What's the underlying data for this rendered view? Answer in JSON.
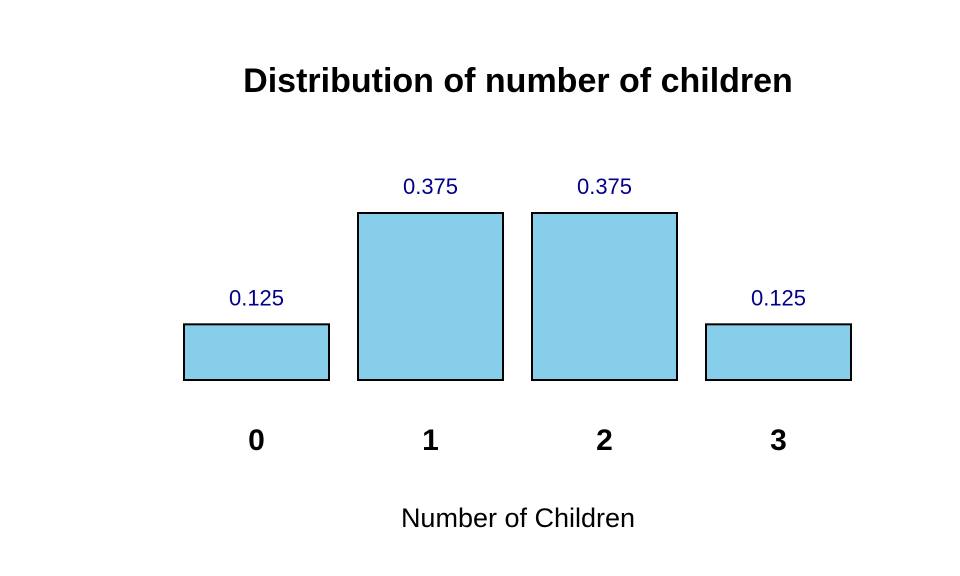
{
  "chart_data": {
    "type": "bar",
    "title": "Distribution of number of children",
    "xlabel": "Number of Children",
    "ylabel": "",
    "categories": [
      "0",
      "1",
      "2",
      "3"
    ],
    "values": [
      0.125,
      0.375,
      0.375,
      0.125
    ],
    "value_labels": [
      "0.125",
      "0.375",
      "0.375",
      "0.125"
    ],
    "ylim": [
      0,
      0.375
    ],
    "grid": false,
    "colors": {
      "bar_fill": "#87CEEB",
      "bar_stroke": "#000000",
      "value_label": "#00008B",
      "text": "#000000"
    }
  }
}
